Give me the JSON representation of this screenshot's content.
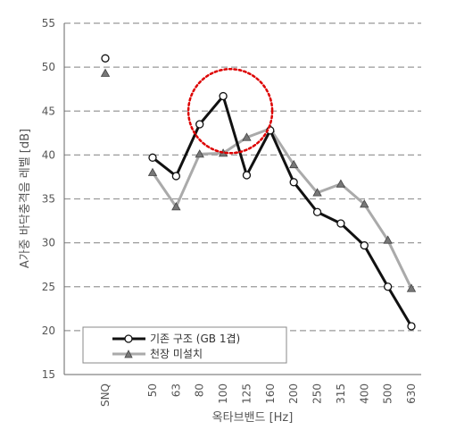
{
  "chart_data": {
    "type": "line",
    "categories": [
      "SNQ",
      "50",
      "63",
      "80",
      "100",
      "125",
      "160",
      "200",
      "250",
      "315",
      "400",
      "500",
      "630"
    ],
    "xlabel": "옥타브밴드 [Hz]",
    "ylabel": "A가중 바닥충격음 레벨 [dB]",
    "ylim": [
      15,
      55
    ],
    "yticks": [
      15,
      20,
      25,
      30,
      35,
      40,
      45,
      50,
      55
    ],
    "grid": "horizontal dashed",
    "legend_position": "bottom-left",
    "series": [
      {
        "name": "기존 구조 (GB 1겹)",
        "color": "#111111",
        "marker": "circle",
        "snq": 51,
        "values": [
          null,
          39.7,
          37.6,
          43.5,
          46.7,
          37.7,
          42.8,
          36.9,
          33.5,
          32.2,
          29.7,
          25.0,
          20.5
        ]
      },
      {
        "name": "천장 미설치",
        "color": "#aaaaaa",
        "marker": "triangle",
        "snq": 49.3,
        "values": [
          null,
          38.0,
          34.1,
          40.1,
          40.2,
          42.0,
          43.0,
          38.9,
          35.7,
          36.7,
          34.4,
          30.3,
          24.8
        ]
      }
    ],
    "annotation": {
      "type": "dotted-circle",
      "color": "#dd0000",
      "around_category": "100"
    }
  }
}
